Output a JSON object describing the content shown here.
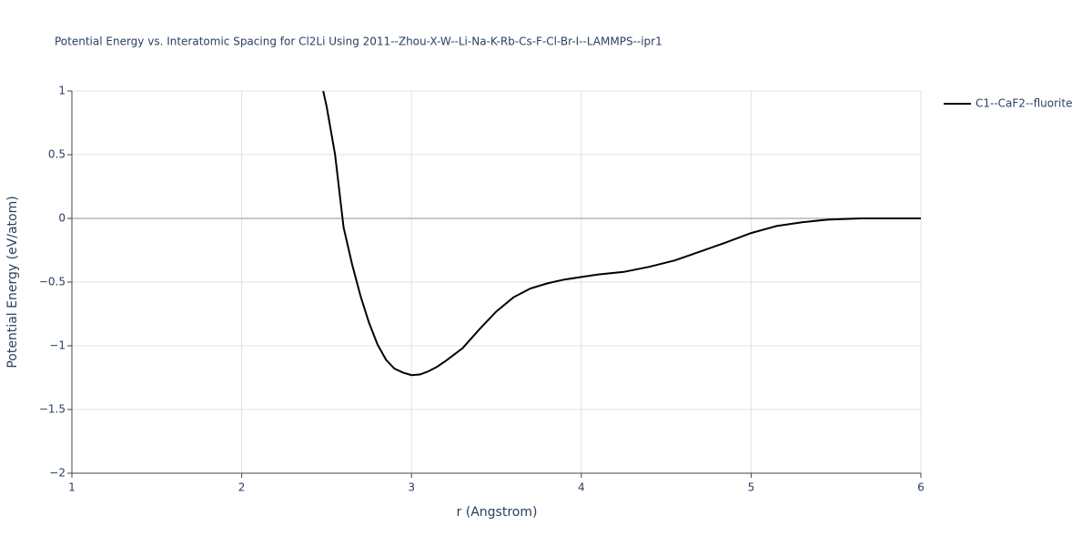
{
  "chart_data": {
    "type": "line",
    "title": "Potential Energy vs. Interatomic Spacing for Cl2Li Using 2011--Zhou-X-W--Li-Na-K-Rb-Cs-F-Cl-Br-I--LAMMPS--ipr1",
    "x_label": "r (Angstrom)",
    "y_label": "Potential Energy (eV/atom)",
    "xlim": [
      1,
      6
    ],
    "ylim": [
      -2,
      1
    ],
    "xticks": [
      1,
      2,
      3,
      4,
      5,
      6
    ],
    "yticks": [
      1,
      0.5,
      0,
      {
        "value": -0.5,
        "label": "−0.5"
      },
      {
        "value": -1,
        "label": "−1"
      },
      {
        "value": -1.5,
        "label": "−1.5"
      },
      {
        "value": -2,
        "label": "−2"
      }
    ],
    "grid": true,
    "legend": "top-right",
    "series": [
      {
        "name": "C1--CaF2--fluorite",
        "color": "#000000",
        "x": [
          2.48,
          2.5,
          2.55,
          2.6,
          2.65,
          2.7,
          2.75,
          2.8,
          2.85,
          2.9,
          2.95,
          3.0,
          3.05,
          3.1,
          3.15,
          3.2,
          3.3,
          3.4,
          3.5,
          3.6,
          3.7,
          3.8,
          3.9,
          4.0,
          4.1,
          4.25,
          4.4,
          4.55,
          4.7,
          4.85,
          5.0,
          5.15,
          5.3,
          5.45,
          5.65,
          5.8,
          6.0
        ],
        "values": [
          1.0,
          0.88,
          0.5,
          -0.07,
          -0.36,
          -0.61,
          -0.82,
          -0.99,
          -1.11,
          -1.18,
          -1.21,
          -1.23,
          -1.225,
          -1.2,
          -1.165,
          -1.12,
          -1.02,
          -0.87,
          -0.73,
          -0.62,
          -0.55,
          -0.51,
          -0.48,
          -0.46,
          -0.44,
          -0.42,
          -0.38,
          -0.33,
          -0.26,
          -0.19,
          -0.115,
          -0.06,
          -0.03,
          -0.01,
          0,
          0,
          0
        ]
      }
    ]
  }
}
